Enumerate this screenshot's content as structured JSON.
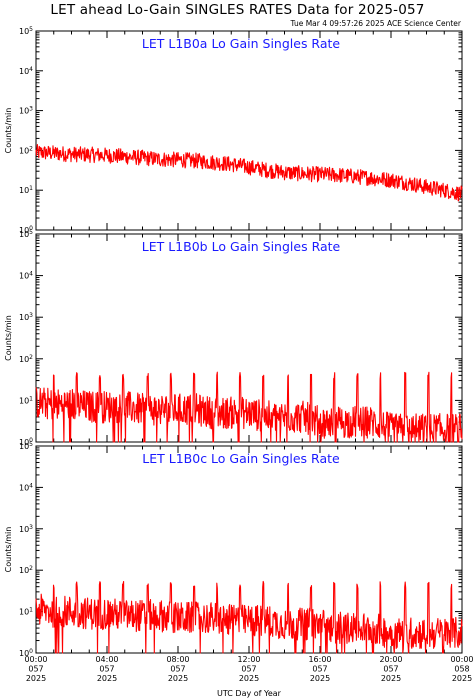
{
  "header": {
    "title": "LET ahead Lo-Gain SINGLES RATES Data for 2025-057",
    "timestamp": "Tue Mar  4 09:57:26 2025 ACE Science Center"
  },
  "colors": {
    "series": "#ff0000",
    "panel_title": "#1a1aff",
    "axes": "#000000"
  },
  "chart_data": [
    {
      "type": "line",
      "title": "LET L1B0a Lo Gain Singles Rate",
      "ylabel": "Counts/min",
      "y_scale": "log",
      "ylim": [
        1,
        100000
      ],
      "y_ticks": [
        "10^0",
        "10^1",
        "10^2",
        "10^3",
        "10^4",
        "10^5"
      ],
      "x_hours": [
        0,
        1,
        2,
        3,
        4,
        5,
        6,
        7,
        8,
        9,
        10,
        11,
        12,
        13,
        14,
        15,
        16,
        17,
        18,
        19,
        20,
        21,
        22,
        23,
        24
      ],
      "series": [
        {
          "values": [
            90,
            85,
            80,
            78,
            75,
            70,
            65,
            60,
            58,
            55,
            50,
            45,
            38,
            32,
            28,
            26,
            25,
            24,
            22,
            20,
            18,
            15,
            12,
            10,
            8
          ]
        }
      ]
    },
    {
      "type": "line",
      "title": "LET L1B0b Lo Gain Singles Rate",
      "ylabel": "Counts/min",
      "y_scale": "log",
      "ylim": [
        1,
        100000
      ],
      "y_ticks": [
        "10^0",
        "10^1",
        "10^2",
        "10^3",
        "10^4",
        "10^5"
      ],
      "x_hours": [
        0,
        1,
        2,
        3,
        4,
        5,
        6,
        7,
        8,
        9,
        10,
        11,
        12,
        13,
        14,
        15,
        16,
        17,
        18,
        19,
        20,
        21,
        22,
        23,
        24
      ],
      "series": [
        {
          "values": [
            9,
            8,
            8,
            7,
            7,
            7,
            6,
            6,
            6,
            6,
            5,
            5,
            5,
            4,
            4,
            4,
            3,
            3,
            3,
            3,
            2,
            2,
            2,
            2,
            2
          ]
        }
      ],
      "spike_hours": [
        1.0,
        2.3,
        3.6,
        4.9,
        6.3,
        7.6,
        8.9,
        10.2,
        11.5,
        12.8,
        14.2,
        15.5,
        16.8,
        18.1,
        19.4,
        20.8,
        22.1,
        23.4
      ],
      "spike_value": 40
    },
    {
      "type": "line",
      "title": "LET L1B0c Lo Gain Singles Rate",
      "ylabel": "Counts/min",
      "y_scale": "log",
      "ylim": [
        1,
        100000
      ],
      "y_ticks": [
        "10^0",
        "10^1",
        "10^2",
        "10^3",
        "10^4",
        "10^5"
      ],
      "x_hours": [
        0,
        1,
        2,
        3,
        4,
        5,
        6,
        7,
        8,
        9,
        10,
        11,
        12,
        13,
        14,
        15,
        16,
        17,
        18,
        19,
        20,
        21,
        22,
        23,
        24
      ],
      "series": [
        {
          "values": [
            11,
            10,
            10,
            9,
            9,
            8,
            8,
            8,
            7,
            7,
            7,
            6,
            6,
            6,
            5,
            5,
            5,
            4,
            4,
            4,
            3,
            3,
            3,
            3,
            3
          ]
        }
      ],
      "spike_hours": [
        1.0,
        2.3,
        3.6,
        4.9,
        6.3,
        7.6,
        8.9,
        10.2,
        11.5,
        12.8,
        14.2,
        15.5,
        16.8,
        18.1,
        19.4,
        20.8,
        22.1,
        23.4
      ],
      "spike_value": 45
    }
  ],
  "x_axis": {
    "label": "UTC Day of Year",
    "xlim_hours": [
      0,
      24
    ],
    "ticks": [
      {
        "hour": 0,
        "lines": [
          "00:00",
          "057",
          "2025"
        ]
      },
      {
        "hour": 4,
        "lines": [
          "04:00",
          "057",
          "2025"
        ]
      },
      {
        "hour": 8,
        "lines": [
          "08:00",
          "057",
          "2025"
        ]
      },
      {
        "hour": 12,
        "lines": [
          "12:00",
          "057",
          "2025"
        ]
      },
      {
        "hour": 16,
        "lines": [
          "16:00",
          "057",
          "2025"
        ]
      },
      {
        "hour": 20,
        "lines": [
          "20:00",
          "057",
          "2025"
        ]
      },
      {
        "hour": 24,
        "lines": [
          "00:00",
          "058",
          "2025"
        ]
      }
    ]
  }
}
